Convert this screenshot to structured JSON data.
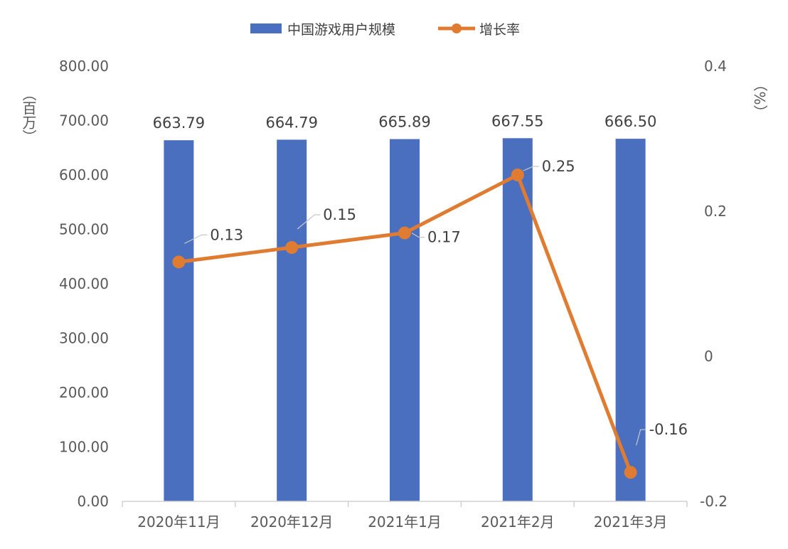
{
  "chart_data": {
    "type": "bar",
    "categories": [
      "2020年11月",
      "2020年12月",
      "2021年1月",
      "2021年2月",
      "2021年3月"
    ],
    "series": [
      {
        "name": "中国游戏用户规模",
        "type": "bar",
        "axis": "left",
        "values": [
          663.79,
          664.79,
          665.89,
          667.55,
          666.5
        ],
        "labels": [
          "663.79",
          "664.79",
          "665.89",
          "667.55",
          "666.50"
        ],
        "color": "#4a6fbf"
      },
      {
        "name": "增长率",
        "type": "line",
        "axis": "right",
        "values": [
          0.13,
          0.15,
          0.17,
          0.25,
          -0.16
        ],
        "labels": [
          "0.13",
          "0.15",
          "0.17",
          "0.25",
          "-0.16"
        ],
        "color": "#e07c32"
      }
    ],
    "y_left": {
      "label": "（百万）",
      "ylim": [
        0,
        800
      ],
      "ticks": [
        "0.00",
        "100.00",
        "200.00",
        "300.00",
        "400.00",
        "500.00",
        "600.00",
        "700.00",
        "800.00"
      ]
    },
    "y_right": {
      "label": "（%）",
      "ylim": [
        -0.2,
        0.4
      ],
      "ticks": [
        "-0.2",
        "0",
        "0.2",
        "0.4"
      ]
    },
    "legend_position": "top",
    "grid": false
  }
}
